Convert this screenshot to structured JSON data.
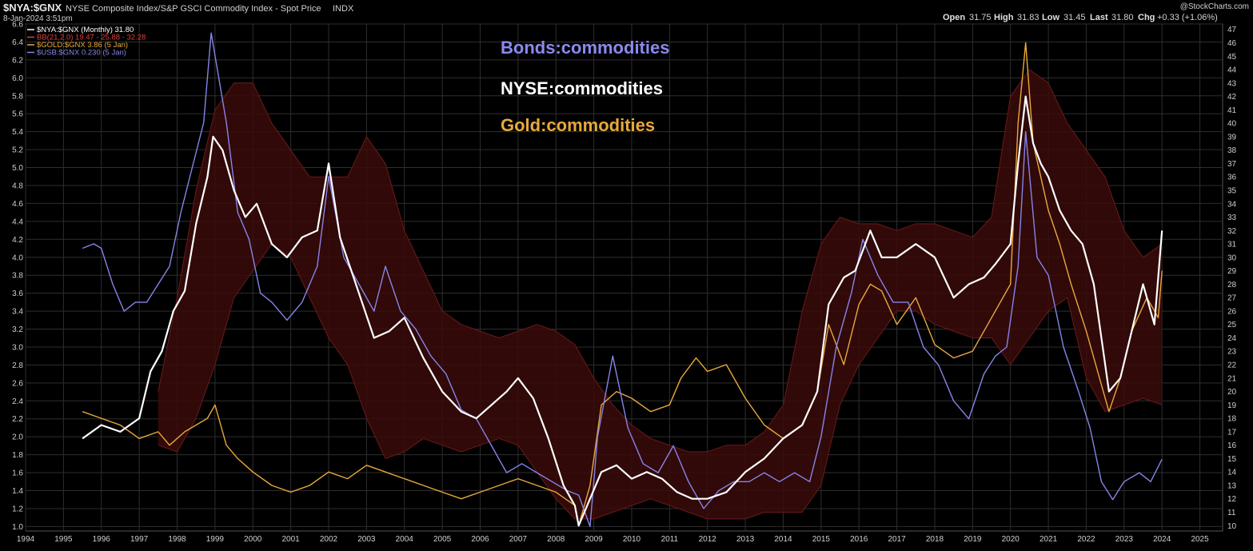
{
  "header": {
    "symbol": "$NYA:$GNX",
    "description": "NYSE Composite Index/S&P GSCI Commodity Index - Spot Price",
    "exchange": "INDX",
    "date": "8-Jan-2024 3:51pm",
    "watermark": "@StockCharts.com",
    "ohlc": {
      "open_label": "Open",
      "open": "31.75",
      "high_label": "High",
      "high": "31.83",
      "low_label": "Low",
      "low": "31.45",
      "last_label": "Last",
      "last": "31.80",
      "chg_label": "Chg",
      "chg": "+0.33 (+1.06%)"
    }
  },
  "legend": [
    {
      "text": "$NYA:$GNX (Monthly) 31.80",
      "color": "#ffffff"
    },
    {
      "text": "BB(21,2.0) 19.47 - 25.88 - 32.28",
      "color": "#e04040"
    },
    {
      "text": "$GOLD:$GNX 3.86 (5 Jan)",
      "color": "#e8a93a"
    },
    {
      "text": "$USB:$GNX 0.230 (5 Jan)",
      "color": "#8585e8"
    }
  ],
  "annotations": [
    {
      "text": "Bonds:commodities",
      "color": "#8a8aee"
    },
    {
      "text": "NYSE:commodities",
      "color": "#ffffff"
    },
    {
      "text": "Gold:commodities",
      "color": "#e8a93a"
    }
  ],
  "colors": {
    "background": "#000000",
    "grid": "#2e2e2e",
    "nya": "#ffffff",
    "gold": "#e8a93a",
    "bonds": "#8585e8",
    "band_fill": "#3a0a0a",
    "band_edge": "#6a1a1a"
  },
  "chart_data": {
    "type": "line",
    "x_axis": {
      "ticks": [
        "1994",
        "1995",
        "1996",
        "1997",
        "1998",
        "1999",
        "2000",
        "2001",
        "2002",
        "2003",
        "2004",
        "2005",
        "2006",
        "2007",
        "2008",
        "2009",
        "2010",
        "2011",
        "2012",
        "2013",
        "2014",
        "2015",
        "2016",
        "2017",
        "2018",
        "2019",
        "2020",
        "2021",
        "2022",
        "2023",
        "2024",
        "2025"
      ],
      "xlim": [
        1994.0,
        2025.6
      ]
    },
    "y_left": {
      "ticks": [
        "1.0",
        "1.2",
        "1.4",
        "1.6",
        "1.8",
        "2.0",
        "2.2",
        "2.4",
        "2.6",
        "2.8",
        "3.0",
        "3.2",
        "3.4",
        "3.6",
        "3.8",
        "4.0",
        "4.2",
        "4.4",
        "4.6",
        "4.8",
        "5.0",
        "5.2",
        "5.4",
        "5.6",
        "5.8",
        "6.0",
        "6.2",
        "6.4",
        "6.6"
      ],
      "ylim": [
        0.95,
        6.6
      ]
    },
    "y_right": {
      "ticks": [
        "10",
        "11",
        "12",
        "13",
        "14",
        "15",
        "16",
        "17",
        "18",
        "19",
        "20",
        "21",
        "22",
        "23",
        "24",
        "25",
        "26",
        "27",
        "28",
        "29",
        "30",
        "31",
        "32",
        "33",
        "34",
        "35",
        "36",
        "37",
        "38",
        "39",
        "40",
        "41",
        "42",
        "43",
        "44",
        "45",
        "46",
        "47"
      ],
      "ylim": [
        9.6,
        47.4
      ]
    },
    "grid": true,
    "legend_position": "top-left",
    "series": [
      {
        "name": "$NYA:$GNX (Monthly)",
        "axis": "right",
        "x": [
          1995.5,
          1996.0,
          1996.5,
          1997.0,
          1997.3,
          1997.6,
          1997.9,
          1998.2,
          1998.5,
          1998.8,
          1998.95,
          1999.2,
          1999.5,
          1999.8,
          2000.1,
          2000.5,
          2000.9,
          2001.3,
          2001.7,
          2002.0,
          2002.3,
          2002.6,
          2002.9,
          2003.2,
          2003.6,
          2004.0,
          2004.5,
          2005.0,
          2005.5,
          2005.9,
          2006.3,
          2006.7,
          2007.0,
          2007.4,
          2007.8,
          2008.2,
          2008.5,
          2008.6,
          2008.9,
          2009.2,
          2009.6,
          2010.0,
          2010.4,
          2010.8,
          2011.2,
          2011.6,
          2012.0,
          2012.5,
          2013.0,
          2013.5,
          2014.0,
          2014.5,
          2014.9,
          2015.2,
          2015.6,
          2015.9,
          2016.3,
          2016.6,
          2017.0,
          2017.5,
          2018.0,
          2018.5,
          2018.9,
          2019.3,
          2019.6,
          2020.0,
          2020.2,
          2020.4,
          2020.6,
          2020.8,
          2021.0,
          2021.3,
          2021.6,
          2021.9,
          2022.2,
          2022.4,
          2022.6,
          2022.9,
          2023.2,
          2023.5,
          2023.8,
          2024.0
        ],
        "y": [
          16.5,
          17.5,
          17.0,
          18.0,
          21.5,
          23.0,
          26.0,
          27.5,
          32.5,
          36.0,
          39.0,
          38.0,
          35.0,
          33.0,
          34.0,
          31.0,
          30.0,
          31.5,
          32.0,
          37.0,
          31.5,
          29.0,
          26.5,
          24.0,
          24.5,
          25.5,
          22.5,
          20.0,
          18.5,
          18.0,
          19.0,
          20.0,
          21.0,
          19.5,
          16.5,
          13.0,
          11.5,
          10.0,
          12.0,
          14.0,
          14.5,
          13.5,
          14.0,
          13.5,
          12.5,
          12.0,
          12.0,
          12.5,
          14.0,
          15.0,
          16.5,
          17.5,
          20.0,
          26.5,
          28.5,
          29.0,
          32.0,
          30.0,
          30.0,
          31.0,
          30.0,
          27.0,
          28.0,
          28.5,
          29.5,
          31.0,
          37.0,
          42.0,
          38.5,
          37.0,
          36.0,
          33.5,
          32.0,
          31.0,
          28.0,
          24.0,
          20.0,
          21.0,
          24.5,
          28.0,
          25.0,
          32.0
        ]
      },
      {
        "name": "$GOLD:$GNX",
        "axis": "right",
        "x": [
          1995.5,
          1996.0,
          1996.5,
          1997.0,
          1997.5,
          1997.8,
          1998.2,
          1998.5,
          1998.8,
          1999.0,
          1999.3,
          1999.6,
          2000.0,
          2000.5,
          2001.0,
          2001.5,
          2002.0,
          2002.5,
          2003.0,
          2003.5,
          2004.0,
          2004.5,
          2005.0,
          2005.5,
          2006.0,
          2006.5,
          2007.0,
          2007.5,
          2008.0,
          2008.5,
          2008.6,
          2008.9,
          2009.2,
          2009.6,
          2010.0,
          2010.5,
          2011.0,
          2011.3,
          2011.7,
          2012.0,
          2012.5,
          2013.0,
          2013.5,
          2014.0,
          2014.5,
          2014.9,
          2015.2,
          2015.6,
          2016.0,
          2016.3,
          2016.6,
          2017.0,
          2017.5,
          2018.0,
          2018.5,
          2019.0,
          2019.5,
          2020.0,
          2020.2,
          2020.4,
          2020.6,
          2020.8,
          2021.0,
          2021.3,
          2021.6,
          2022.0,
          2022.3,
          2022.6,
          2022.9,
          2023.2,
          2023.6,
          2023.9,
          2024.0
        ],
        "y": [
          18.5,
          18.0,
          17.5,
          16.5,
          17.0,
          16.0,
          17.0,
          17.5,
          18.0,
          19.0,
          16.0,
          15.0,
          14.0,
          13.0,
          12.5,
          13.0,
          14.0,
          13.5,
          14.5,
          14.0,
          13.5,
          13.0,
          12.5,
          12.0,
          12.5,
          13.0,
          13.5,
          13.0,
          12.5,
          11.5,
          10.0,
          13.0,
          19.0,
          20.0,
          19.5,
          18.5,
          19.0,
          21.0,
          22.5,
          21.5,
          22.0,
          19.5,
          17.5,
          16.5,
          17.5,
          20.0,
          25.0,
          22.0,
          26.5,
          28.0,
          27.5,
          25.0,
          27.0,
          23.5,
          22.5,
          23.0,
          25.5,
          28.0,
          40.0,
          46.0,
          38.5,
          36.0,
          33.5,
          31.0,
          28.0,
          24.5,
          21.5,
          18.5,
          21.0,
          24.5,
          27.0,
          25.5,
          29.0
        ]
      },
      {
        "name": "$USB:$GNX",
        "axis": "left",
        "x": [
          1995.5,
          1995.8,
          1996.0,
          1996.3,
          1996.6,
          1996.9,
          1997.2,
          1997.5,
          1997.8,
          1998.1,
          1998.4,
          1998.7,
          1998.9,
          1999.1,
          1999.3,
          1999.6,
          1999.9,
          2000.2,
          2000.5,
          2000.9,
          2001.3,
          2001.7,
          2002.0,
          2002.4,
          2002.8,
          2003.2,
          2003.5,
          2003.9,
          2004.3,
          2004.7,
          2005.1,
          2005.5,
          2005.9,
          2006.3,
          2006.7,
          2007.1,
          2007.5,
          2007.9,
          2008.3,
          2008.6,
          2008.9,
          2009.1,
          2009.5,
          2009.9,
          2010.3,
          2010.7,
          2011.1,
          2011.5,
          2011.9,
          2012.3,
          2012.7,
          2013.1,
          2013.5,
          2013.9,
          2014.3,
          2014.7,
          2015.0,
          2015.4,
          2015.8,
          2016.1,
          2016.5,
          2016.9,
          2017.3,
          2017.7,
          2018.1,
          2018.5,
          2018.9,
          2019.3,
          2019.6,
          2019.9,
          2020.2,
          2020.4,
          2020.7,
          2021.0,
          2021.4,
          2021.8,
          2022.1,
          2022.4,
          2022.7,
          2023.0,
          2023.4,
          2023.7,
          2024.0
        ],
        "y": [
          4.1,
          4.15,
          4.1,
          3.7,
          3.4,
          3.5,
          3.5,
          3.7,
          3.9,
          4.5,
          5.0,
          5.5,
          6.5,
          6.0,
          5.5,
          4.5,
          4.2,
          3.6,
          3.5,
          3.3,
          3.5,
          3.9,
          4.9,
          4.0,
          3.7,
          3.4,
          3.9,
          3.4,
          3.2,
          2.9,
          2.7,
          2.3,
          2.2,
          1.9,
          1.6,
          1.7,
          1.6,
          1.5,
          1.4,
          1.35,
          1.0,
          2.0,
          2.9,
          2.1,
          1.7,
          1.6,
          1.9,
          1.5,
          1.2,
          1.4,
          1.5,
          1.5,
          1.6,
          1.5,
          1.6,
          1.5,
          2.0,
          3.0,
          3.6,
          4.2,
          3.8,
          3.5,
          3.5,
          3.0,
          2.8,
          2.4,
          2.2,
          2.7,
          2.9,
          3.0,
          3.9,
          5.4,
          4.0,
          3.8,
          3.0,
          2.5,
          2.1,
          1.5,
          1.3,
          1.5,
          1.6,
          1.5,
          1.75
        ]
      },
      {
        "name": "BB(21,2.0) upper",
        "axis": "right",
        "x": [
          1997.5,
          1998.0,
          1998.5,
          1999.0,
          1999.5,
          2000.0,
          2000.5,
          2001.0,
          2001.5,
          2002.0,
          2002.5,
          2003.0,
          2003.5,
          2004.0,
          2004.5,
          2005.0,
          2005.5,
          2006.0,
          2006.5,
          2007.0,
          2007.5,
          2008.0,
          2008.5,
          2009.0,
          2009.5,
          2010.0,
          2010.5,
          2011.0,
          2011.5,
          2012.0,
          2012.5,
          2013.0,
          2013.5,
          2014.0,
          2014.5,
          2015.0,
          2015.5,
          2016.0,
          2016.5,
          2017.0,
          2017.5,
          2018.0,
          2018.5,
          2019.0,
          2019.5,
          2020.0,
          2020.5,
          2021.0,
          2021.5,
          2022.0,
          2022.5,
          2023.0,
          2023.5,
          2024.0
        ],
        "y": [
          20.0,
          27.0,
          35.0,
          41.0,
          43.0,
          43.0,
          40.0,
          38.0,
          36.0,
          36.0,
          36.0,
          39.0,
          37.0,
          32.0,
          29.0,
          26.0,
          25.0,
          24.5,
          24.0,
          24.5,
          25.0,
          24.5,
          23.5,
          21.0,
          19.0,
          17.5,
          16.5,
          16.0,
          15.5,
          15.5,
          16.0,
          16.0,
          17.0,
          19.0,
          26.0,
          31.0,
          33.0,
          32.5,
          32.5,
          32.0,
          32.5,
          32.5,
          32.0,
          31.5,
          33.0,
          42.0,
          44.0,
          43.0,
          40.0,
          38.0,
          36.0,
          32.0,
          30.0,
          31.0
        ]
      },
      {
        "name": "BB(21,2.0) lower",
        "axis": "right",
        "x": [
          1997.5,
          1998.0,
          1998.5,
          1999.0,
          1999.5,
          2000.0,
          2000.5,
          2001.0,
          2001.5,
          2002.0,
          2002.5,
          2003.0,
          2003.5,
          2004.0,
          2004.5,
          2005.0,
          2005.5,
          2006.0,
          2006.5,
          2007.0,
          2007.5,
          2008.0,
          2008.5,
          2009.0,
          2009.5,
          2010.0,
          2010.5,
          2011.0,
          2011.5,
          2012.0,
          2012.5,
          2013.0,
          2013.5,
          2014.0,
          2014.5,
          2015.0,
          2015.5,
          2016.0,
          2016.5,
          2017.0,
          2017.5,
          2018.0,
          2018.5,
          2019.0,
          2019.5,
          2020.0,
          2020.5,
          2021.0,
          2021.5,
          2022.0,
          2022.5,
          2023.0,
          2023.5,
          2024.0
        ],
        "y": [
          16.0,
          15.5,
          18.0,
          22.0,
          27.0,
          29.0,
          31.0,
          30.0,
          27.0,
          24.0,
          22.0,
          18.0,
          15.0,
          15.5,
          16.5,
          16.0,
          15.5,
          16.0,
          16.5,
          16.0,
          14.0,
          12.0,
          10.5,
          10.5,
          11.0,
          11.5,
          12.0,
          11.5,
          11.0,
          10.5,
          10.5,
          10.5,
          11.0,
          11.0,
          11.0,
          13.0,
          19.0,
          22.0,
          24.0,
          26.0,
          26.0,
          25.0,
          24.5,
          24.0,
          24.0,
          22.0,
          24.0,
          26.0,
          27.0,
          21.0,
          18.5,
          19.0,
          19.5,
          19.0
        ]
      }
    ]
  }
}
